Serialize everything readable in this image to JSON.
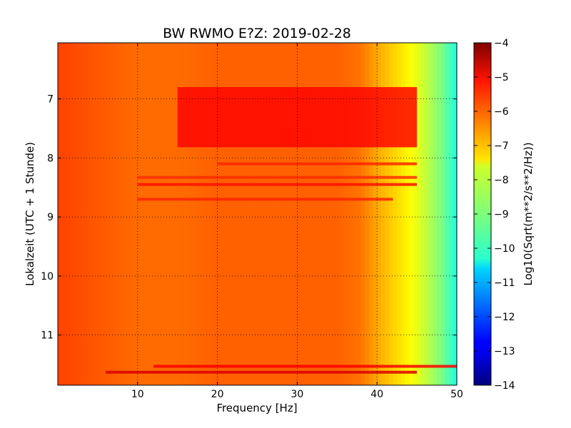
{
  "chart_data": {
    "type": "heatmap",
    "title": "BW RWMO E?Z: 2019-02-28",
    "xlabel": "Frequency [Hz]",
    "ylabel": "Lokalzeit (UTC + 1 Stunde)",
    "xlim": [
      0,
      50
    ],
    "ylim": [
      6.05,
      11.85
    ],
    "y_inverted": true,
    "x_ticks": [
      10,
      20,
      30,
      40,
      50
    ],
    "x_tick_labels": [
      "10",
      "20",
      "30",
      "40",
      "50"
    ],
    "y_ticks": [
      7,
      8,
      9,
      10,
      11
    ],
    "y_tick_labels": [
      "7",
      "8",
      "9",
      "10",
      "11"
    ],
    "grid": true,
    "colormap": "jet",
    "colorbar": {
      "label": "Log10(Sqrt(m**2/s**2/Hz))",
      "range": [
        -14,
        -4
      ],
      "ticks": [
        -4,
        -5,
        -6,
        -7,
        -8,
        -9,
        -10,
        -11,
        -12,
        -13,
        -14
      ],
      "tick_labels": [
        "−4",
        "−5",
        "−6",
        "−7",
        "−8",
        "−9",
        "−10",
        "−11",
        "−12",
        "−13",
        "−14"
      ]
    },
    "spectral_profile": {
      "freq_hz": [
        0,
        5,
        10,
        15,
        20,
        25,
        30,
        35,
        38,
        40,
        42,
        44,
        46,
        48,
        50
      ],
      "log_psd": [
        -5.9,
        -6.1,
        -6.3,
        -6.3,
        -6.2,
        -6.2,
        -6.2,
        -6.2,
        -6.4,
        -6.9,
        -7.3,
        -7.7,
        -8.3,
        -9.0,
        -10.0
      ]
    },
    "high_noise_period": {
      "time_start": 6.8,
      "time_end": 7.82,
      "freq_start": 15,
      "freq_end": 45,
      "log_psd": -5.3
    },
    "stripes": [
      {
        "time": 8.1,
        "freq_start": 20,
        "freq_end": 45,
        "log_psd": -5.6
      },
      {
        "time": 8.33,
        "freq_start": 10,
        "freq_end": 45,
        "log_psd": -5.7
      },
      {
        "time": 8.45,
        "freq_start": 10,
        "freq_end": 45,
        "log_psd": -5.4
      },
      {
        "time": 8.7,
        "freq_start": 10,
        "freq_end": 42,
        "log_psd": -5.6
      },
      {
        "time": 11.53,
        "freq_start": 12,
        "freq_end": 50,
        "log_psd": -5.2
      },
      {
        "time": 11.63,
        "freq_start": 6,
        "freq_end": 45,
        "log_psd": -4.9
      }
    ]
  }
}
